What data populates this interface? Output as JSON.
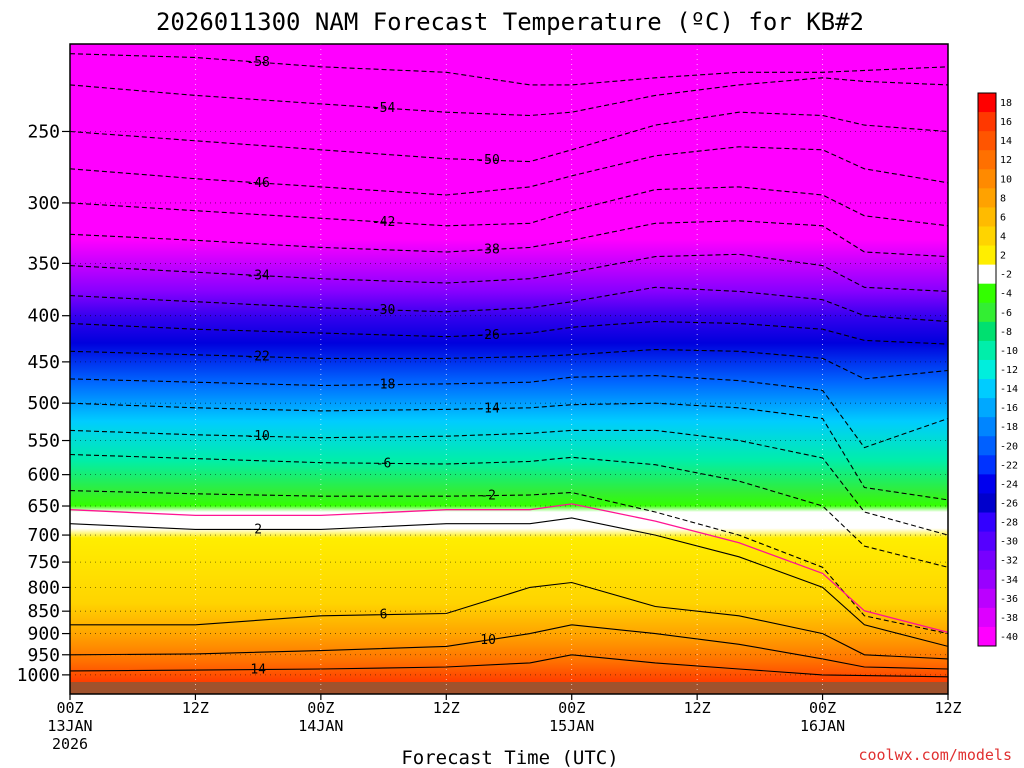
{
  "chart_data": {
    "type": "heatmap",
    "title": "2026011300 NAM Forecast Temperature (ºC) for KB#2",
    "xlabel": "Forecast Time (UTC)",
    "ylabel": "",
    "credit": "coolwx.com/models",
    "y_axis": {
      "scale": "pressure (log, inverted)",
      "ylim": [
        1050,
        200
      ],
      "ticks": [
        250,
        300,
        350,
        400,
        450,
        500,
        550,
        600,
        650,
        700,
        750,
        800,
        850,
        900,
        950,
        1000
      ]
    },
    "x_axis": {
      "xlim_hours": [
        0,
        84
      ],
      "ticks": [
        {
          "hour": 0,
          "l1": "00Z",
          "l2": "13JAN",
          "l3": "2026"
        },
        {
          "hour": 12,
          "l1": "12Z",
          "l2": "",
          "l3": ""
        },
        {
          "hour": 24,
          "l1": "00Z",
          "l2": "14JAN",
          "l3": ""
        },
        {
          "hour": 36,
          "l1": "12Z",
          "l2": "",
          "l3": ""
        },
        {
          "hour": 48,
          "l1": "00Z",
          "l2": "15JAN",
          "l3": ""
        },
        {
          "hour": 60,
          "l1": "12Z",
          "l2": "",
          "l3": ""
        },
        {
          "hour": 72,
          "l1": "00Z",
          "l2": "16JAN",
          "l3": ""
        },
        {
          "hour": 84,
          "l1": "12Z",
          "l2": "",
          "l3": ""
        }
      ]
    },
    "grid": true,
    "colorbar": {
      "placement": "right",
      "labels": [
        "18",
        "16",
        "14",
        "12",
        "10",
        "8",
        "6",
        "4",
        "2",
        "-2",
        "-4",
        "-6",
        "-8",
        "-10",
        "-12",
        "-14",
        "-16",
        "-18",
        "-20",
        "-22",
        "-24",
        "-26",
        "-28",
        "-30",
        "-32",
        "-34",
        "-36",
        "-38",
        "-40"
      ],
      "colors": [
        "#ff0000",
        "#ff3800",
        "#ff5500",
        "#ff7000",
        "#ff8a00",
        "#ffa200",
        "#ffbb00",
        "#ffd400",
        "#ffee00",
        "#ffffff",
        "#33ff00",
        "#33ee33",
        "#00e070",
        "#00eeaa",
        "#00eedd",
        "#00ccff",
        "#00a8ff",
        "#0085ff",
        "#0060ff",
        "#0033ff",
        "#0000ee",
        "#0000cc",
        "#3300ff",
        "#5500ff",
        "#7700ff",
        "#9900ff",
        "#bb00ff",
        "#dd00ff",
        "#ff00ff"
      ]
    },
    "series": [
      {
        "name": "-58",
        "values": [
          [
            0,
            205
          ],
          [
            12,
            207
          ],
          [
            24,
            212
          ],
          [
            36,
            215
          ],
          [
            44,
            222
          ],
          [
            48,
            222
          ],
          [
            56,
            218
          ],
          [
            64,
            215
          ],
          [
            72,
            215
          ],
          [
            84,
            212
          ]
        ]
      },
      {
        "name": "-54",
        "values": [
          [
            0,
            222
          ],
          [
            12,
            228
          ],
          [
            24,
            233
          ],
          [
            36,
            238
          ],
          [
            44,
            240
          ],
          [
            48,
            238
          ],
          [
            56,
            228
          ],
          [
            64,
            222
          ],
          [
            72,
            218
          ],
          [
            76,
            220
          ],
          [
            84,
            222
          ]
        ]
      },
      {
        "name": "-50",
        "values": [
          [
            0,
            250
          ],
          [
            12,
            256
          ],
          [
            24,
            262
          ],
          [
            36,
            268
          ],
          [
            44,
            270
          ],
          [
            48,
            262
          ],
          [
            56,
            246
          ],
          [
            64,
            238
          ],
          [
            72,
            240
          ],
          [
            76,
            246
          ],
          [
            84,
            250
          ]
        ]
      },
      {
        "name": "-46",
        "values": [
          [
            0,
            275
          ],
          [
            12,
            282
          ],
          [
            24,
            288
          ],
          [
            36,
            294
          ],
          [
            44,
            288
          ],
          [
            48,
            280
          ],
          [
            56,
            266
          ],
          [
            64,
            260
          ],
          [
            72,
            262
          ],
          [
            76,
            275
          ],
          [
            84,
            285
          ]
        ]
      },
      {
        "name": "-42",
        "values": [
          [
            0,
            300
          ],
          [
            12,
            306
          ],
          [
            24,
            312
          ],
          [
            36,
            318
          ],
          [
            44,
            316
          ],
          [
            48,
            306
          ],
          [
            56,
            290
          ],
          [
            64,
            288
          ],
          [
            72,
            294
          ],
          [
            76,
            310
          ],
          [
            84,
            318
          ]
        ]
      },
      {
        "name": "-38",
        "values": [
          [
            0,
            325
          ],
          [
            12,
            330
          ],
          [
            24,
            336
          ],
          [
            36,
            340
          ],
          [
            44,
            336
          ],
          [
            48,
            330
          ],
          [
            56,
            316
          ],
          [
            64,
            314
          ],
          [
            72,
            318
          ],
          [
            76,
            340
          ],
          [
            84,
            344
          ]
        ]
      },
      {
        "name": "-34",
        "values": [
          [
            0,
            352
          ],
          [
            12,
            358
          ],
          [
            24,
            364
          ],
          [
            36,
            368
          ],
          [
            44,
            364
          ],
          [
            48,
            358
          ],
          [
            56,
            344
          ],
          [
            64,
            342
          ],
          [
            72,
            352
          ],
          [
            76,
            372
          ],
          [
            84,
            376
          ]
        ]
      },
      {
        "name": "-30",
        "values": [
          [
            0,
            380
          ],
          [
            12,
            386
          ],
          [
            24,
            392
          ],
          [
            36,
            396
          ],
          [
            44,
            392
          ],
          [
            48,
            386
          ],
          [
            56,
            372
          ],
          [
            64,
            376
          ],
          [
            72,
            384
          ],
          [
            76,
            400
          ],
          [
            84,
            406
          ]
        ]
      },
      {
        "name": "-26",
        "values": [
          [
            0,
            408
          ],
          [
            12,
            414
          ],
          [
            24,
            418
          ],
          [
            36,
            422
          ],
          [
            44,
            418
          ],
          [
            48,
            412
          ],
          [
            56,
            406
          ],
          [
            64,
            408
          ],
          [
            72,
            414
          ],
          [
            76,
            426
          ],
          [
            84,
            430
          ]
        ]
      },
      {
        "name": "-22",
        "values": [
          [
            0,
            438
          ],
          [
            12,
            442
          ],
          [
            24,
            446
          ],
          [
            36,
            446
          ],
          [
            44,
            444
          ],
          [
            48,
            442
          ],
          [
            56,
            436
          ],
          [
            64,
            438
          ],
          [
            72,
            446
          ],
          [
            76,
            470
          ],
          [
            84,
            460
          ]
        ]
      },
      {
        "name": "-18",
        "values": [
          [
            0,
            470
          ],
          [
            12,
            474
          ],
          [
            24,
            478
          ],
          [
            36,
            476
          ],
          [
            44,
            474
          ],
          [
            48,
            468
          ],
          [
            56,
            466
          ],
          [
            64,
            472
          ],
          [
            72,
            484
          ],
          [
            76,
            560
          ],
          [
            84,
            520
          ]
        ]
      },
      {
        "name": "-14",
        "values": [
          [
            0,
            500
          ],
          [
            12,
            506
          ],
          [
            24,
            510
          ],
          [
            36,
            508
          ],
          [
            44,
            506
          ],
          [
            48,
            502
          ],
          [
            56,
            500
          ],
          [
            64,
            506
          ],
          [
            72,
            520
          ],
          [
            76,
            620
          ],
          [
            84,
            640
          ]
        ]
      },
      {
        "name": "-10",
        "values": [
          [
            0,
            536
          ],
          [
            12,
            542
          ],
          [
            24,
            546
          ],
          [
            36,
            544
          ],
          [
            44,
            540
          ],
          [
            48,
            536
          ],
          [
            56,
            536
          ],
          [
            64,
            550
          ],
          [
            72,
            575
          ],
          [
            76,
            660
          ],
          [
            84,
            700
          ]
        ]
      },
      {
        "name": "-6",
        "values": [
          [
            0,
            570
          ],
          [
            12,
            576
          ],
          [
            24,
            582
          ],
          [
            36,
            584
          ],
          [
            44,
            580
          ],
          [
            48,
            574
          ],
          [
            56,
            585
          ],
          [
            64,
            610
          ],
          [
            72,
            650
          ],
          [
            76,
            720
          ],
          [
            84,
            760
          ]
        ]
      },
      {
        "name": "-2",
        "values": [
          [
            0,
            625
          ],
          [
            12,
            630
          ],
          [
            24,
            634
          ],
          [
            36,
            634
          ],
          [
            44,
            632
          ],
          [
            48,
            628
          ],
          [
            56,
            660
          ],
          [
            64,
            700
          ],
          [
            72,
            760
          ],
          [
            76,
            860
          ],
          [
            84,
            900
          ]
        ]
      },
      {
        "name": "2",
        "values": [
          [
            0,
            680
          ],
          [
            12,
            690
          ],
          [
            24,
            690
          ],
          [
            36,
            680
          ],
          [
            44,
            680
          ],
          [
            48,
            670
          ],
          [
            56,
            700
          ],
          [
            64,
            740
          ],
          [
            72,
            800
          ],
          [
            76,
            880
          ],
          [
            84,
            930
          ]
        ]
      },
      {
        "name": "6",
        "values": [
          [
            0,
            880
          ],
          [
            12,
            880
          ],
          [
            24,
            860
          ],
          [
            36,
            855
          ],
          [
            44,
            800
          ],
          [
            48,
            790
          ],
          [
            56,
            840
          ],
          [
            64,
            860
          ],
          [
            72,
            900
          ],
          [
            76,
            950
          ],
          [
            84,
            960
          ]
        ]
      },
      {
        "name": "10",
        "values": [
          [
            0,
            950
          ],
          [
            12,
            948
          ],
          [
            24,
            940
          ],
          [
            36,
            930
          ],
          [
            44,
            900
          ],
          [
            48,
            880
          ],
          [
            56,
            900
          ],
          [
            64,
            925
          ],
          [
            72,
            960
          ],
          [
            76,
            980
          ],
          [
            84,
            985
          ]
        ]
      },
      {
        "name": "14",
        "values": [
          [
            0,
            990
          ],
          [
            12,
            988
          ],
          [
            24,
            985
          ],
          [
            36,
            980
          ],
          [
            44,
            970
          ],
          [
            48,
            950
          ],
          [
            56,
            970
          ],
          [
            64,
            985
          ],
          [
            72,
            1000
          ],
          [
            84,
            1005
          ]
        ]
      }
    ]
  }
}
